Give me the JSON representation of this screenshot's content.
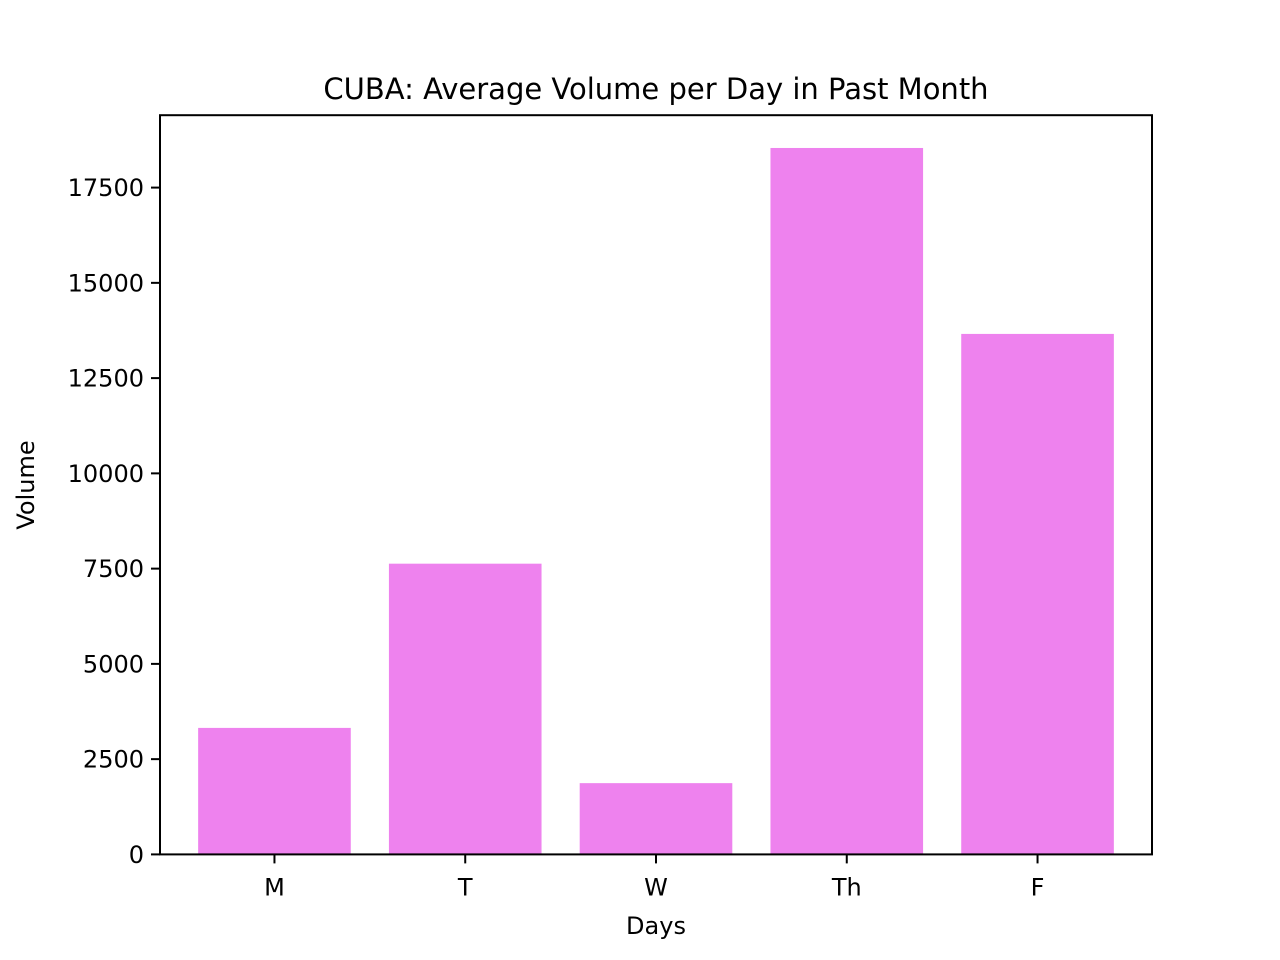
{
  "chart_data": {
    "type": "bar",
    "title": "CUBA: Average Volume per Day in Past Month",
    "xlabel": "Days",
    "ylabel": "Volume",
    "categories": [
      "M",
      "T",
      "W",
      "Th",
      "F"
    ],
    "values": [
      3320,
      7630,
      1870,
      18540,
      13660
    ],
    "ylim": [
      0,
      19400
    ],
    "yticks": [
      0,
      2500,
      5000,
      7500,
      10000,
      12500,
      15000,
      17500
    ],
    "ytick_labels": [
      "0",
      "2500",
      "5000",
      "7500",
      "10000",
      "12500",
      "15000",
      "17500"
    ],
    "bar_color": "#ee82ee",
    "grid": false,
    "legend": "none"
  }
}
